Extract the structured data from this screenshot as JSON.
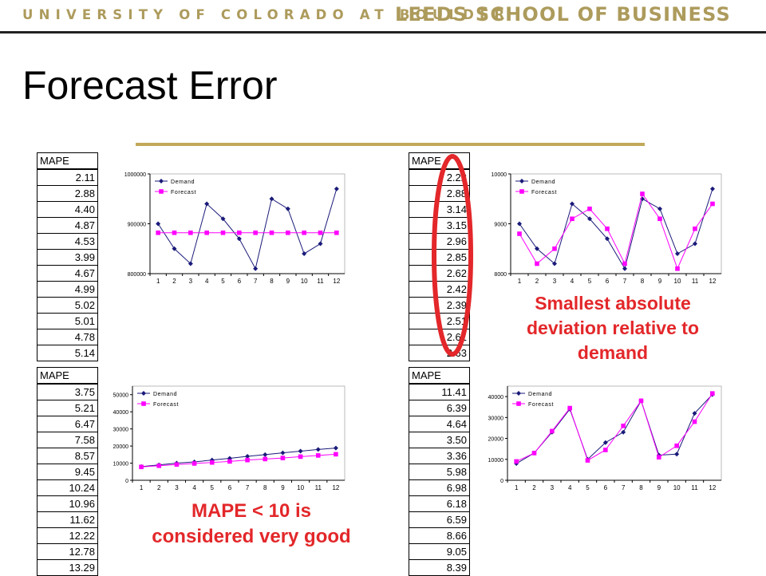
{
  "header": {
    "university": "UNIVERSITY OF COLORADO AT BOULDER",
    "school": "LEEDS SCHOOL OF BUSINESS"
  },
  "slide_title": "Forecast Error",
  "annotations": {
    "top_right": [
      "Smallest absolute",
      "deviation relative to",
      "demand"
    ],
    "bottom_left": [
      "MAPE < 10 is",
      "considered very good"
    ]
  },
  "colors": {
    "demand": "#1a1a7a",
    "forecast": "#ff00ff",
    "highlight": "#e3272a",
    "gold": "#c2a95a"
  },
  "tables": [
    {
      "header": "MAPE",
      "values": [
        "2.11",
        "2.88",
        "4.40",
        "4.87",
        "4.53",
        "3.99",
        "4.67",
        "4.99",
        "5.02",
        "5.01",
        "4.78",
        "5.14"
      ]
    },
    {
      "header": "MAPE",
      "values": [
        "2.22",
        "2.88",
        "3.14",
        "3.15",
        "2.96",
        "2.85",
        "2.62",
        "2.42",
        "2.39",
        "2.51",
        "2.61",
        "2.63"
      ]
    },
    {
      "header": "MAPE",
      "values": [
        "3.75",
        "5.21",
        "6.47",
        "7.58",
        "8.57",
        "9.45",
        "10.24",
        "10.96",
        "11.62",
        "12.22",
        "12.78",
        "13.29"
      ]
    },
    {
      "header": "MAPE",
      "values": [
        "11.41",
        "6.39",
        "4.64",
        "3.50",
        "3.36",
        "5.98",
        "6.98",
        "6.18",
        "6.59",
        "8.66",
        "9.05",
        "8.39"
      ]
    }
  ],
  "chart_data": [
    {
      "type": "line",
      "x": [
        1,
        2,
        3,
        4,
        5,
        6,
        7,
        8,
        9,
        10,
        11,
        12
      ],
      "ylim": [
        800000,
        1000000
      ],
      "yticks": [
        800000,
        900000,
        1000000
      ],
      "legend": "top-left",
      "series": [
        {
          "name": "Demand",
          "values": [
            900000,
            850000,
            820000,
            940000,
            910000,
            870000,
            810000,
            950000,
            930000,
            840000,
            860000,
            970000
          ]
        },
        {
          "name": "Forecast",
          "values": [
            882000,
            882000,
            882000,
            882000,
            882000,
            882000,
            882000,
            882000,
            882000,
            882000,
            882000,
            882000
          ]
        }
      ]
    },
    {
      "type": "line",
      "x": [
        1,
        2,
        3,
        4,
        5,
        6,
        7,
        8,
        9,
        10,
        11,
        12
      ],
      "ylim": [
        8000,
        10000
      ],
      "yticks": [
        8000,
        9000,
        10000
      ],
      "legend": "top-left",
      "series": [
        {
          "name": "Demand",
          "values": [
            9000,
            8500,
            8200,
            9400,
            9100,
            8700,
            8100,
            9500,
            9300,
            8400,
            8600,
            9700
          ]
        },
        {
          "name": "Forecast",
          "values": [
            8800,
            8200,
            8500,
            9100,
            9300,
            8900,
            8200,
            9600,
            9100,
            8100,
            8900,
            9400
          ]
        }
      ]
    },
    {
      "type": "line",
      "x": [
        1,
        2,
        3,
        4,
        5,
        6,
        7,
        8,
        9,
        10,
        11,
        12
      ],
      "ylim": [
        0,
        55000
      ],
      "yticks": [
        0,
        10000,
        20000,
        30000,
        40000,
        50000
      ],
      "legend": "top-left",
      "series": [
        {
          "name": "Demand",
          "values": [
            8000,
            9000,
            10000,
            10700,
            11800,
            12800,
            14000,
            15000,
            16000,
            17000,
            18000,
            18800
          ]
        },
        {
          "name": "Forecast",
          "values": [
            7800,
            8500,
            9200,
            9800,
            10400,
            11000,
            11800,
            12400,
            13000,
            13800,
            14500,
            15200
          ]
        }
      ]
    },
    {
      "type": "line",
      "x": [
        1,
        2,
        3,
        4,
        5,
        6,
        7,
        8,
        9,
        10,
        11,
        12
      ],
      "ylim": [
        0,
        45000
      ],
      "yticks": [
        0,
        10000,
        20000,
        30000,
        40000
      ],
      "legend": "top-left",
      "series": [
        {
          "name": "Demand",
          "values": [
            8000,
            13000,
            23000,
            34000,
            10000,
            18000,
            23000,
            38000,
            12000,
            12500,
            32000,
            41000
          ]
        },
        {
          "name": "Forecast",
          "values": [
            9000,
            13000,
            23500,
            34500,
            9500,
            14500,
            26000,
            38000,
            11000,
            16500,
            28000,
            41500
          ]
        }
      ]
    }
  ]
}
